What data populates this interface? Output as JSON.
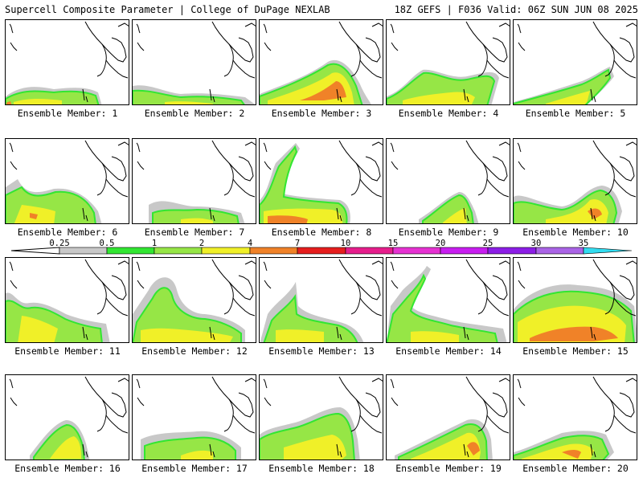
{
  "header": {
    "left": "Supercell Composite Parameter | College of DuPage NEXLAB",
    "right": "18Z GEFS | F036 Valid: 06Z SUN JUN 08 2025"
  },
  "legend": {
    "ticks": [
      "0.25",
      "0.5",
      "1",
      "2",
      "4",
      "7",
      "10",
      "15",
      "20",
      "25",
      "30",
      "35"
    ],
    "colors": [
      "#c8c8c8",
      "#32e632",
      "#96e646",
      "#f0f028",
      "#f08228",
      "#e61e1e",
      "#e61e8c",
      "#e632d2",
      "#c81ef0",
      "#8c1ee6",
      "#aa64e6",
      "#32dcf0"
    ]
  },
  "panels": [
    {
      "label": "Ensemble Member: 1"
    },
    {
      "label": "Ensemble Member: 2"
    },
    {
      "label": "Ensemble Member: 3"
    },
    {
      "label": "Ensemble Member: 4"
    },
    {
      "label": "Ensemble Member: 5"
    },
    {
      "label": "Ensemble Member: 6"
    },
    {
      "label": "Ensemble Member: 7"
    },
    {
      "label": "Ensemble Member: 8"
    },
    {
      "label": "Ensemble Member: 9"
    },
    {
      "label": "Ensemble Member: 10"
    },
    {
      "label": "Ensemble Member: 11"
    },
    {
      "label": "Ensemble Member: 12"
    },
    {
      "label": "Ensemble Member: 13"
    },
    {
      "label": "Ensemble Member: 14"
    },
    {
      "label": "Ensemble Member: 15"
    },
    {
      "label": "Ensemble Member: 16"
    },
    {
      "label": "Ensemble Member: 17"
    },
    {
      "label": "Ensemble Member: 18"
    },
    {
      "label": "Ensemble Member: 19"
    },
    {
      "label": "Ensemble Member: 20"
    }
  ]
}
